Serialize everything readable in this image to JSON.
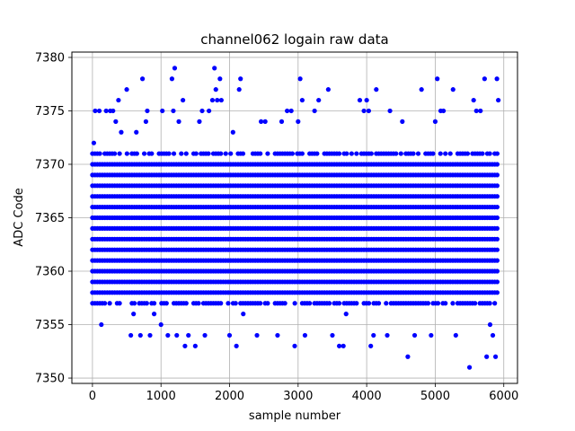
{
  "chart_data": {
    "type": "scatter",
    "title": "channel062 logain raw data",
    "xlabel": "sample number",
    "ylabel": "ADC Code",
    "xlim": [
      -300,
      6200
    ],
    "ylim": [
      7349.5,
      7380.5
    ],
    "xticks": [
      0,
      1000,
      2000,
      3000,
      4000,
      5000,
      6000
    ],
    "xtick_labels": [
      "0",
      "1000",
      "2000",
      "3000",
      "4000",
      "5000",
      "6000"
    ],
    "yticks": [
      7350,
      7355,
      7360,
      7365,
      7370,
      7375,
      7380
    ],
    "ytick_labels": [
      "7350",
      "7355",
      "7360",
      "7365",
      "7370",
      "7375",
      "7380"
    ],
    "grid": true,
    "marker_color": "#0000ff",
    "x_range": [
      0,
      5920
    ],
    "dense_band": [
      7357,
      7371
    ],
    "outliers": [
      {
        "x": 20,
        "y": 7372
      },
      {
        "x": 40,
        "y": 7375
      },
      {
        "x": 100,
        "y": 7375
      },
      {
        "x": 130,
        "y": 7355
      },
      {
        "x": 200,
        "y": 7375
      },
      {
        "x": 260,
        "y": 7375
      },
      {
        "x": 300,
        "y": 7375
      },
      {
        "x": 340,
        "y": 7374
      },
      {
        "x": 380,
        "y": 7376
      },
      {
        "x": 420,
        "y": 7373
      },
      {
        "x": 500,
        "y": 7377
      },
      {
        "x": 560,
        "y": 7354
      },
      {
        "x": 600,
        "y": 7356
      },
      {
        "x": 640,
        "y": 7373
      },
      {
        "x": 700,
        "y": 7354
      },
      {
        "x": 730,
        "y": 7378
      },
      {
        "x": 780,
        "y": 7374
      },
      {
        "x": 800,
        "y": 7375
      },
      {
        "x": 840,
        "y": 7354
      },
      {
        "x": 900,
        "y": 7356
      },
      {
        "x": 1000,
        "y": 7355
      },
      {
        "x": 1020,
        "y": 7375
      },
      {
        "x": 1100,
        "y": 7354
      },
      {
        "x": 1160,
        "y": 7378
      },
      {
        "x": 1180,
        "y": 7375
      },
      {
        "x": 1200,
        "y": 7379
      },
      {
        "x": 1230,
        "y": 7354
      },
      {
        "x": 1260,
        "y": 7374
      },
      {
        "x": 1320,
        "y": 7376
      },
      {
        "x": 1350,
        "y": 7353
      },
      {
        "x": 1400,
        "y": 7354
      },
      {
        "x": 1500,
        "y": 7353
      },
      {
        "x": 1560,
        "y": 7374
      },
      {
        "x": 1600,
        "y": 7375
      },
      {
        "x": 1640,
        "y": 7354
      },
      {
        "x": 1700,
        "y": 7375
      },
      {
        "x": 1750,
        "y": 7376
      },
      {
        "x": 1780,
        "y": 7379
      },
      {
        "x": 1800,
        "y": 7377
      },
      {
        "x": 1820,
        "y": 7376
      },
      {
        "x": 1860,
        "y": 7378
      },
      {
        "x": 1880,
        "y": 7376
      },
      {
        "x": 2000,
        "y": 7354
      },
      {
        "x": 2050,
        "y": 7373
      },
      {
        "x": 2100,
        "y": 7353
      },
      {
        "x": 2140,
        "y": 7377
      },
      {
        "x": 2160,
        "y": 7378
      },
      {
        "x": 2200,
        "y": 7356
      },
      {
        "x": 2400,
        "y": 7354
      },
      {
        "x": 2460,
        "y": 7374
      },
      {
        "x": 2520,
        "y": 7374
      },
      {
        "x": 2700,
        "y": 7354
      },
      {
        "x": 2760,
        "y": 7374
      },
      {
        "x": 2840,
        "y": 7375
      },
      {
        "x": 2900,
        "y": 7375
      },
      {
        "x": 2950,
        "y": 7353
      },
      {
        "x": 3000,
        "y": 7374
      },
      {
        "x": 3030,
        "y": 7378
      },
      {
        "x": 3060,
        "y": 7376
      },
      {
        "x": 3100,
        "y": 7354
      },
      {
        "x": 3240,
        "y": 7375
      },
      {
        "x": 3300,
        "y": 7376
      },
      {
        "x": 3440,
        "y": 7377
      },
      {
        "x": 3500,
        "y": 7354
      },
      {
        "x": 3600,
        "y": 7353
      },
      {
        "x": 3660,
        "y": 7353
      },
      {
        "x": 3700,
        "y": 7356
      },
      {
        "x": 3900,
        "y": 7376
      },
      {
        "x": 3960,
        "y": 7375
      },
      {
        "x": 4000,
        "y": 7376
      },
      {
        "x": 4030,
        "y": 7375
      },
      {
        "x": 4060,
        "y": 7353
      },
      {
        "x": 4100,
        "y": 7354
      },
      {
        "x": 4140,
        "y": 7377
      },
      {
        "x": 4300,
        "y": 7354
      },
      {
        "x": 4340,
        "y": 7375
      },
      {
        "x": 4520,
        "y": 7374
      },
      {
        "x": 4600,
        "y": 7352
      },
      {
        "x": 4700,
        "y": 7354
      },
      {
        "x": 4800,
        "y": 7377
      },
      {
        "x": 4940,
        "y": 7354
      },
      {
        "x": 5000,
        "y": 7374
      },
      {
        "x": 5030,
        "y": 7378
      },
      {
        "x": 5080,
        "y": 7375
      },
      {
        "x": 5120,
        "y": 7375
      },
      {
        "x": 5260,
        "y": 7377
      },
      {
        "x": 5300,
        "y": 7354
      },
      {
        "x": 5500,
        "y": 7351
      },
      {
        "x": 5560,
        "y": 7376
      },
      {
        "x": 5600,
        "y": 7375
      },
      {
        "x": 5660,
        "y": 7375
      },
      {
        "x": 5720,
        "y": 7378
      },
      {
        "x": 5750,
        "y": 7352
      },
      {
        "x": 5800,
        "y": 7355
      },
      {
        "x": 5840,
        "y": 7354
      },
      {
        "x": 5880,
        "y": 7352
      },
      {
        "x": 5900,
        "y": 7378
      },
      {
        "x": 5920,
        "y": 7376
      }
    ]
  }
}
